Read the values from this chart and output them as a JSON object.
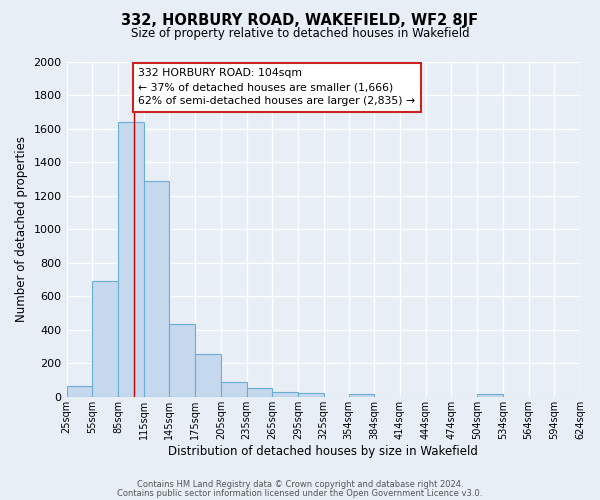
{
  "title": "332, HORBURY ROAD, WAKEFIELD, WF2 8JF",
  "subtitle": "Size of property relative to detached houses in Wakefield",
  "xlabel": "Distribution of detached houses by size in Wakefield",
  "ylabel": "Number of detached properties",
  "bar_left_edges": [
    25,
    55,
    85,
    115,
    145,
    175,
    205,
    235,
    265,
    295,
    325,
    354,
    384,
    414,
    444,
    474,
    504,
    534,
    564,
    594
  ],
  "bar_widths": [
    30,
    30,
    30,
    30,
    30,
    30,
    30,
    30,
    30,
    30,
    29,
    30,
    30,
    30,
    30,
    30,
    30,
    30,
    30,
    30
  ],
  "bar_heights": [
    65,
    690,
    1640,
    1290,
    435,
    255,
    90,
    55,
    30,
    20,
    0,
    15,
    0,
    0,
    0,
    0,
    15,
    0,
    0,
    0
  ],
  "tick_labels": [
    "25sqm",
    "55sqm",
    "85sqm",
    "115sqm",
    "145sqm",
    "175sqm",
    "205sqm",
    "235sqm",
    "265sqm",
    "295sqm",
    "325sqm",
    "354sqm",
    "384sqm",
    "414sqm",
    "444sqm",
    "474sqm",
    "504sqm",
    "534sqm",
    "564sqm",
    "594sqm",
    "624sqm"
  ],
  "tick_positions": [
    25,
    55,
    85,
    115,
    145,
    175,
    205,
    235,
    265,
    295,
    325,
    354,
    384,
    414,
    444,
    474,
    504,
    534,
    564,
    594,
    624
  ],
  "bar_color": "#c5d8ed",
  "bar_edge_color": "#6aaed6",
  "bar_edge_width": 0.8,
  "background_color": "#e8eef6",
  "plot_bg_color": "#e8eef6",
  "grid_color": "#ffffff",
  "ylim": [
    0,
    2000
  ],
  "yticks": [
    0,
    200,
    400,
    600,
    800,
    1000,
    1200,
    1400,
    1600,
    1800,
    2000
  ],
  "red_line_x": 104,
  "annotation_title": "332 HORBURY ROAD: 104sqm",
  "annotation_line1": "← 37% of detached houses are smaller (1,666)",
  "annotation_line2": "62% of semi-detached houses are larger (2,835) →",
  "footer_line1": "Contains HM Land Registry data © Crown copyright and database right 2024.",
  "footer_line2": "Contains public sector information licensed under the Open Government Licence v3.0."
}
